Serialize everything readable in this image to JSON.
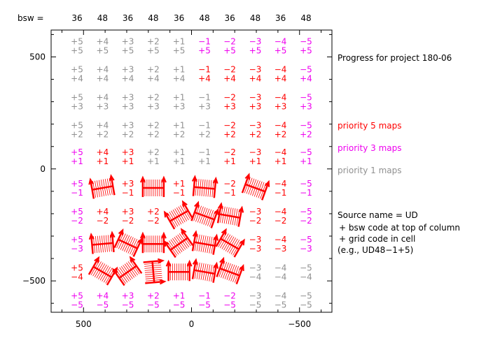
{
  "chart_data": {
    "type": "grid-map",
    "xlim": [
      650,
      -650
    ],
    "ylim": [
      -640,
      620
    ],
    "x_ticks": [
      500,
      0,
      -500
    ],
    "x_tick_labels": [
      "500",
      "0",
      "−500"
    ],
    "y_ticks": [
      500,
      0,
      -500
    ],
    "y_tick_labels": [
      "500",
      "0",
      "−500"
    ],
    "bsw_label": "bsw =",
    "bsw_codes": [
      "36",
      "48",
      "36",
      "48",
      "36",
      "48",
      "36",
      "48",
      "36",
      "48"
    ],
    "col_codes": [
      "+5",
      "+4",
      "+3",
      "+2",
      "+1",
      "−1",
      "−2",
      "−3",
      "−4",
      "−5"
    ],
    "row_codes": [
      "+5",
      "+4",
      "+3",
      "+2",
      "+1",
      "−1",
      "−2",
      "−3",
      "−4",
      "−5"
    ],
    "col_x": [
      530,
      412,
      295,
      177,
      58,
      -60,
      -177,
      -295,
      -412,
      -530
    ],
    "row_y": [
      550,
      425,
      300,
      175,
      55,
      -85,
      -210,
      -335,
      -460,
      -585
    ],
    "colors": {
      "p5": "#ff0000",
      "p3": "#ee00ee",
      "p1": "#909090",
      "axis": "#000000"
    },
    "cells": [
      [
        "p1",
        "p1",
        "p1",
        "p1",
        "p1",
        "p3",
        "p3",
        "p3",
        "p3",
        "p3"
      ],
      [
        "p1",
        "p1",
        "p1",
        "p1",
        "p1",
        "p5",
        "p5",
        "p5",
        "p5",
        "p3"
      ],
      [
        "p1",
        "p1",
        "p1",
        "p1",
        "p1",
        "p1",
        "p5",
        "p5",
        "p5",
        "p3"
      ],
      [
        "p1",
        "p1",
        "p1",
        "p1",
        "p1",
        "p1",
        "p5",
        "p5",
        "p5",
        "p3"
      ],
      [
        "p3",
        "p5",
        "p5",
        "p1",
        "p1",
        "p1",
        "p5",
        "p5",
        "p5",
        "p3"
      ],
      [
        "p3",
        "m",
        "p5",
        "m",
        "p5",
        "m",
        "p5",
        "m",
        "p5",
        "p3"
      ],
      [
        "p3",
        "p5",
        "p5",
        "p5",
        "m",
        "m",
        "m",
        "p5",
        "p5",
        "p3"
      ],
      [
        "p3",
        "m",
        "m",
        "m",
        "m",
        "m",
        "m",
        "p5",
        "p5",
        "p3"
      ],
      [
        "p5",
        "m",
        "m",
        "m",
        "m",
        "m",
        "m",
        "p1",
        "p1",
        "p1"
      ],
      [
        "p3",
        "p3",
        "p3",
        "p3",
        "p3",
        "p3",
        "p3",
        "p1",
        "p1",
        "p1"
      ]
    ],
    "mapped_cells": [
      {
        "row": 5,
        "col": 1,
        "rot": -10
      },
      {
        "row": 5,
        "col": 3,
        "rot": 0
      },
      {
        "row": 5,
        "col": 5,
        "rot": 5
      },
      {
        "row": 5,
        "col": 7,
        "rot": 20
      },
      {
        "row": 6,
        "col": 4,
        "rot": -30
      },
      {
        "row": 6,
        "col": 5,
        "rot": 20
      },
      {
        "row": 6,
        "col": 6,
        "rot": 10
      },
      {
        "row": 7,
        "col": 1,
        "rot": -5
      },
      {
        "row": 7,
        "col": 2,
        "rot": 25
      },
      {
        "row": 7,
        "col": 3,
        "rot": 0
      },
      {
        "row": 7,
        "col": 4,
        "rot": -35
      },
      {
        "row": 7,
        "col": 5,
        "rot": 10
      },
      {
        "row": 7,
        "col": 6,
        "rot": 30
      },
      {
        "row": 8,
        "col": 1,
        "rot": 30
      },
      {
        "row": 8,
        "col": 2,
        "rot": -35
      },
      {
        "row": 8,
        "col": 3,
        "rot": 85
      },
      {
        "row": 8,
        "col": 4,
        "rot": 0
      },
      {
        "row": 8,
        "col": 5,
        "rot": 10
      },
      {
        "row": 8,
        "col": 6,
        "rot": 20
      }
    ]
  },
  "legend": {
    "title": "Progress for project 180-06",
    "p5": "priority 5 maps",
    "p3": "priority 3 maps",
    "p1": "priority 1 maps"
  },
  "note": {
    "line1": "Source name = UD",
    "line2": "+ bsw code at top of column",
    "line3": "+ grid code in cell",
    "line4": "(e.g., UD48−1+5)"
  }
}
